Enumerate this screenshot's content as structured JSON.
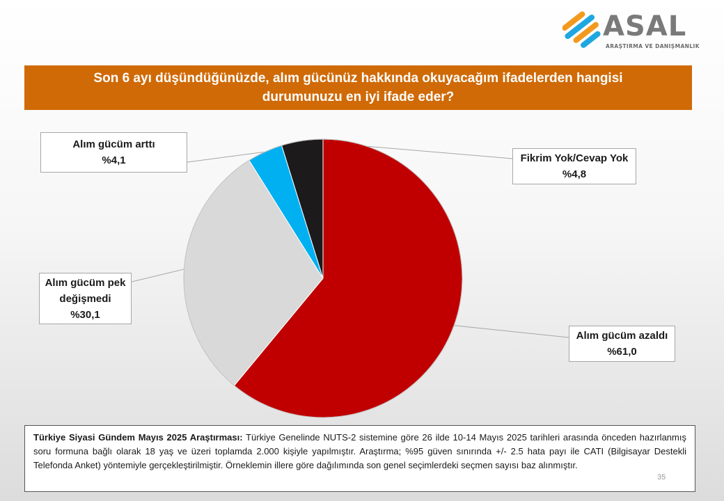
{
  "brand": {
    "name": "ASAL",
    "tagline": "ARAŞTIRMA VE DANIŞMANLIK",
    "colors": {
      "orange": "#f39a1e",
      "blue": "#1ea7e0",
      "gray": "#7a7a7a"
    }
  },
  "question": "Son 6 ayı düşündüğünüzde, alım gücünüz hakkında okuyacağım ifadelerden hangisi durumunuzu en iyi ifade eder?",
  "chart_data": {
    "type": "pie",
    "start_angle_deg": 0,
    "direction": "clockwise",
    "slices": [
      {
        "label": "Alım gücüm azaldı",
        "value": 61.0,
        "display": "%61,0",
        "color": "#c00000"
      },
      {
        "label": "Alım gücüm pek değişmedi",
        "value": 30.1,
        "display": "%30,1",
        "color": "#d9d9d9"
      },
      {
        "label": "Alım gücüm arttı",
        "value": 4.1,
        "display": "%4,1",
        "color": "#00b0f0"
      },
      {
        "label": "Fikrim Yok/Cevap Yok",
        "value": 4.8,
        "display": "%4,8",
        "color": "#1c1a1b"
      }
    ],
    "callout_text": {
      "decreased": {
        "line1": "Alım gücüm azaldı",
        "value": "%61,0"
      },
      "unchanged": {
        "line1": "Alım gücüm pek",
        "line2": "değişmedi",
        "value": "%30,1"
      },
      "increased": {
        "line1": "Alım gücüm arttı",
        "value": "%4,1"
      },
      "no_opinion": {
        "line1": "Fikrim Yok/Cevap Yok",
        "value": "%4,8"
      }
    }
  },
  "footnote": {
    "heading": "Türkiye Siyasi Gündem Mayıs 2025 Araştırması:",
    "body": "Türkiye Genelinde NUTS-2 sistemine göre 26 ilde 10-14 Mayıs 2025 tarihleri arasında önceden hazırlanmış soru formuna bağlı olarak 18 yaş ve üzeri toplamda 2.000 kişiyle yapılmıştır. Araştırma; %95 güven sınırında +/- 2.5 hata payı ile CATI (Bilgisayar Destekli Telefonda Anket) yöntemiyle gerçekleştirilmiştir. Örneklemin illere göre dağılımında son genel seçimlerdeki seçmen sayısı baz alınmıştır."
  },
  "page_number": "35"
}
